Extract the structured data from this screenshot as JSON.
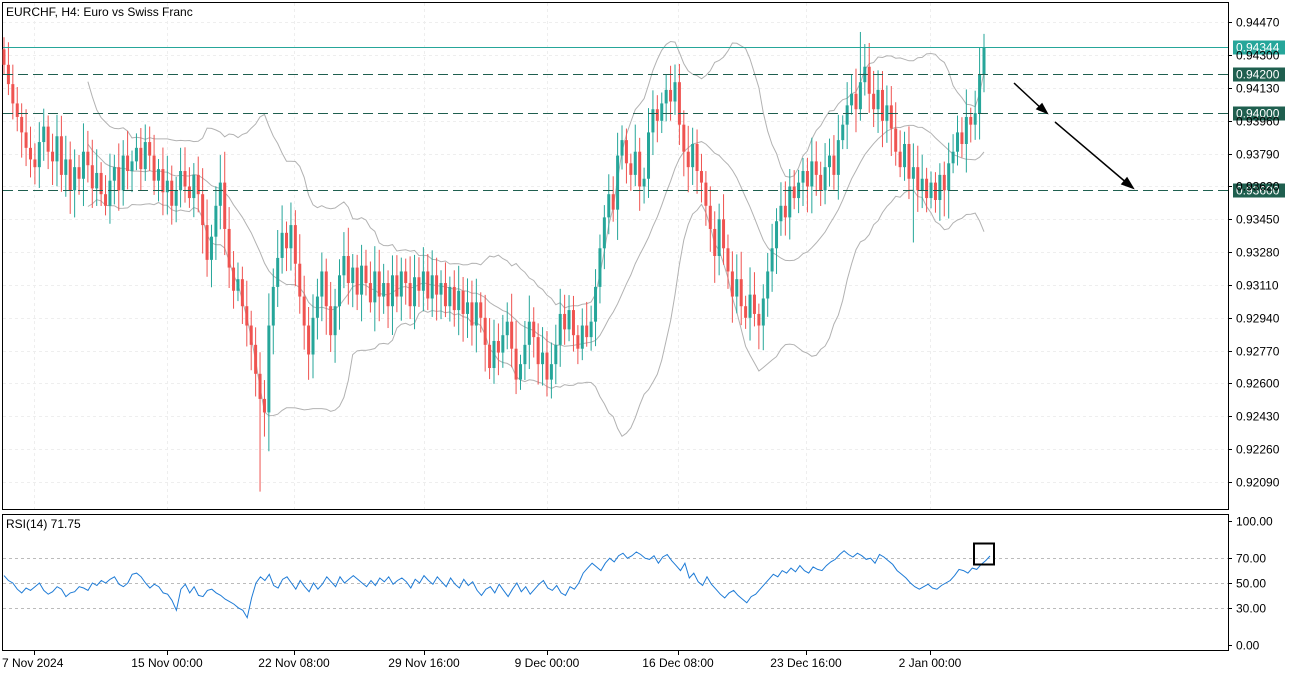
{
  "header": {
    "title": "EURCHF, H4:  Euro vs Swiss Franc"
  },
  "rsi": {
    "label": "RSI(14) 71.75",
    "color": "#1e7bd6",
    "levels": [
      30,
      50,
      70
    ],
    "ticks": [
      "100.00",
      "70.00",
      "50.00",
      "30.00",
      "0.00"
    ],
    "ylim": [
      0,
      100
    ],
    "series": [
      56,
      52,
      50,
      45,
      42,
      46,
      44,
      47,
      50,
      44,
      41,
      43,
      47,
      45,
      39,
      42,
      43,
      47,
      46,
      44,
      50,
      48,
      52,
      50,
      53,
      55,
      49,
      47,
      50,
      57,
      58,
      55,
      50,
      46,
      49,
      47,
      42,
      41,
      36,
      28,
      45,
      49,
      42,
      47,
      40,
      39,
      44,
      45,
      42,
      40,
      37,
      35,
      33,
      30,
      28,
      22,
      38,
      50,
      55,
      52,
      57,
      48,
      46,
      53,
      55,
      50,
      45,
      52,
      47,
      43,
      50,
      45,
      49,
      55,
      51,
      47,
      55,
      50,
      53,
      56,
      53,
      50,
      47,
      52,
      48,
      54,
      51,
      55,
      49,
      52,
      54,
      51,
      46,
      53,
      50,
      56,
      52,
      49,
      55,
      51,
      47,
      54,
      49,
      46,
      53,
      48,
      51,
      44,
      40,
      45,
      47,
      42,
      49,
      44,
      39,
      45,
      50,
      43,
      47,
      41,
      45,
      49,
      52,
      46,
      44,
      48,
      42,
      40,
      47,
      45,
      50,
      58,
      62,
      66,
      63,
      60,
      66,
      70,
      67,
      72,
      74,
      70,
      72,
      75,
      73,
      70,
      69,
      72,
      66,
      71,
      73,
      68,
      64,
      60,
      66,
      54,
      58,
      51,
      48,
      55,
      49,
      45,
      41,
      38,
      42,
      44,
      40,
      37,
      34,
      39,
      41,
      45,
      49,
      53,
      57,
      55,
      60,
      58,
      62,
      59,
      64,
      60,
      58,
      63,
      61,
      60,
      64,
      67,
      69,
      73,
      76,
      73,
      71,
      74,
      72,
      69,
      70,
      66,
      73,
      71,
      68,
      65,
      60,
      57,
      54,
      50,
      47,
      45,
      47,
      49,
      46,
      45,
      48,
      50,
      52,
      56,
      61,
      60,
      58,
      62,
      61,
      65,
      68,
      71.75
    ],
    "x_positions": [
      4,
      990
    ]
  },
  "chart_data": {
    "type": "candlestick",
    "title": "EURCHF, H4:  Euro vs Swiss Franc",
    "symbol": "EURCHF",
    "timeframe": "H4",
    "ylim": [
      0.9195,
      0.9457
    ],
    "y_ticks": [
      "0.94470",
      "0.94300",
      "0.94130",
      "0.93960",
      "0.93790",
      "0.93620",
      "0.93450",
      "0.93280",
      "0.93110",
      "0.92940",
      "0.92770",
      "0.92600",
      "0.92430",
      "0.92260",
      "0.92090"
    ],
    "x_labels": [
      "7 Nov 2024",
      "15 Nov 00:00",
      "22 Nov 08:00",
      "29 Nov 16:00",
      "9 Dec 00:00",
      "16 Dec 08:00",
      "23 Dec 16:00",
      "2 Jan 00:00"
    ],
    "x_label_positions": [
      34,
      167,
      294,
      424,
      547,
      678,
      806,
      930
    ],
    "candle_range_px": [
      4,
      984
    ],
    "colors": {
      "bull": "#26a69a",
      "bear": "#ef5350",
      "band": "#b2b2b2",
      "current": "#26a69a",
      "level": "#1f5f4f"
    },
    "current_price": {
      "value": 0.94344,
      "label": "0.94344"
    },
    "levels": [
      {
        "value": 0.942,
        "label": "0.94200"
      },
      {
        "value": 0.94,
        "label": "0.94000"
      },
      {
        "value": 0.936,
        "label": "0.93600"
      }
    ],
    "closes": [
      0.9425,
      0.9415,
      0.9405,
      0.9398,
      0.939,
      0.9382,
      0.9376,
      0.9372,
      0.9385,
      0.9393,
      0.938,
      0.9375,
      0.9388,
      0.9368,
      0.9376,
      0.936,
      0.9372,
      0.9366,
      0.938,
      0.9373,
      0.9361,
      0.9369,
      0.9358,
      0.9352,
      0.9365,
      0.9372,
      0.936,
      0.9378,
      0.937,
      0.9375,
      0.9382,
      0.9371,
      0.9385,
      0.9378,
      0.9365,
      0.9371,
      0.9359,
      0.9365,
      0.9352,
      0.936,
      0.937,
      0.9362,
      0.9356,
      0.9368,
      0.9358,
      0.9342,
      0.9324,
      0.9336,
      0.9352,
      0.9364,
      0.934,
      0.932,
      0.9308,
      0.9314,
      0.93,
      0.929,
      0.928,
      0.9265,
      0.9252,
      0.9245,
      0.929,
      0.931,
      0.9325,
      0.9338,
      0.933,
      0.9342,
      0.9322,
      0.9305,
      0.929,
      0.9275,
      0.9294,
      0.9305,
      0.9318,
      0.93,
      0.9285,
      0.93,
      0.9316,
      0.9326,
      0.9312,
      0.932,
      0.9306,
      0.9321,
      0.9312,
      0.9302,
      0.9318,
      0.9305,
      0.9312,
      0.93,
      0.9316,
      0.9305,
      0.9318,
      0.9312,
      0.93,
      0.9315,
      0.9308,
      0.9318,
      0.9304,
      0.9316,
      0.9306,
      0.9312,
      0.93,
      0.931,
      0.9298,
      0.9308,
      0.9296,
      0.9302,
      0.929,
      0.9302,
      0.9294,
      0.928,
      0.9268,
      0.9282,
      0.9276,
      0.9285,
      0.9292,
      0.9278,
      0.9262,
      0.927,
      0.928,
      0.9292,
      0.9284,
      0.927,
      0.9276,
      0.9262,
      0.927,
      0.928,
      0.9296,
      0.9288,
      0.9298,
      0.9285,
      0.9278,
      0.929,
      0.9284,
      0.9292,
      0.931,
      0.933,
      0.9346,
      0.9358,
      0.935,
      0.9378,
      0.9386,
      0.9374,
      0.9368,
      0.938,
      0.9362,
      0.9366,
      0.939,
      0.9402,
      0.9396,
      0.9405,
      0.9412,
      0.9406,
      0.9416,
      0.9394,
      0.938,
      0.9372,
      0.9384,
      0.937,
      0.9364,
      0.9352,
      0.934,
      0.9326,
      0.9345,
      0.933,
      0.9318,
      0.9305,
      0.9314,
      0.93,
      0.9294,
      0.9306,
      0.9296,
      0.929,
      0.9304,
      0.9318,
      0.933,
      0.9344,
      0.9352,
      0.9346,
      0.9362,
      0.9356,
      0.9364,
      0.937,
      0.9362,
      0.9375,
      0.9368,
      0.936,
      0.9372,
      0.9378,
      0.9368,
      0.9386,
      0.9394,
      0.9404,
      0.941,
      0.9402,
      0.9416,
      0.9424,
      0.941,
      0.9402,
      0.9412,
      0.9396,
      0.9404,
      0.9392,
      0.938,
      0.9372,
      0.9384,
      0.9366,
      0.9372,
      0.936,
      0.9366,
      0.9356,
      0.9364,
      0.9355,
      0.9368,
      0.936,
      0.9374,
      0.938,
      0.939,
      0.9384,
      0.9398,
      0.9394,
      0.94,
      0.942,
      0.9434
    ]
  }
}
